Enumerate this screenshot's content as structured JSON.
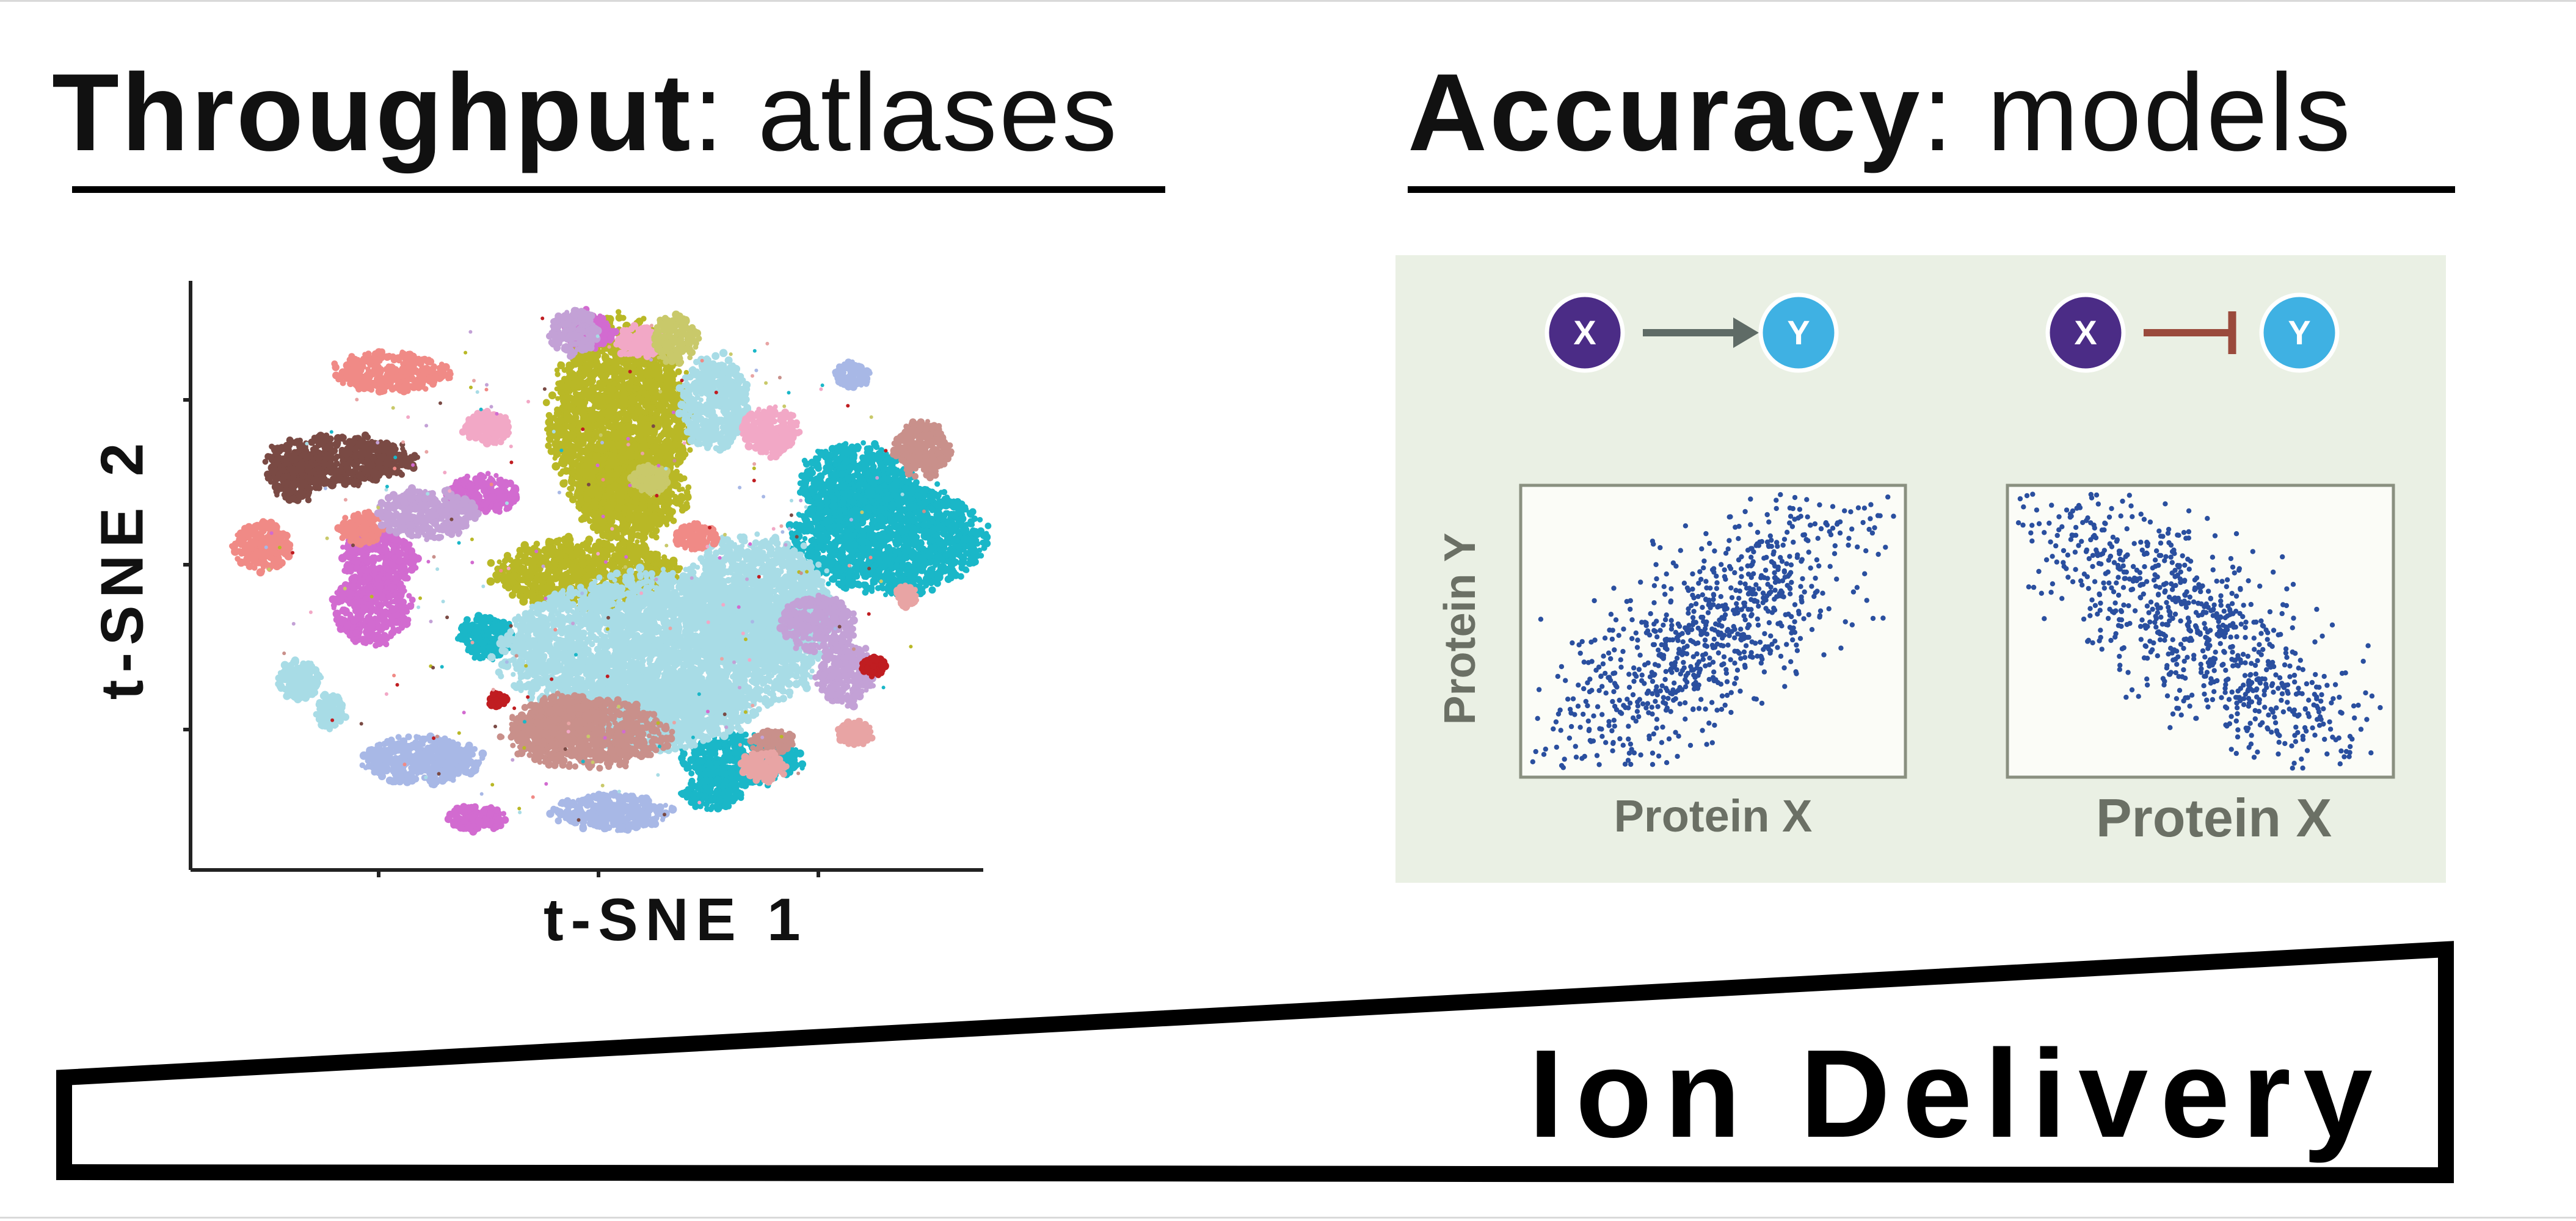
{
  "left_heading": {
    "bold": "Throughput",
    "rest": ": atlases"
  },
  "right_heading": {
    "bold": "Accuracy",
    "rest": ": models"
  },
  "tsne": {
    "xlabel": "t-SNE 1",
    "ylabel": "t-SNE 2"
  },
  "models": {
    "node_x": "X",
    "node_y": "Y",
    "left_relation": "activation",
    "right_relation": "inhibition",
    "ylabel": "Protein Y",
    "left_xlabel": "Protein X",
    "right_xlabel": "Protein X",
    "left_correlation": "positive",
    "right_correlation": "negative"
  },
  "banner": {
    "label": "Ion Delivery"
  },
  "colors": {
    "text": "#111111",
    "panel_bg": "#eaf0e4",
    "node_x": "#4b2c86",
    "node_y": "#3fb1e3",
    "activation_arrow": "#5f6b66",
    "inhibition_arrow": "#9a4a3c",
    "scatter_dots": "#2a4f9f",
    "plot_text": "#6b7065",
    "clusters": [
      "#b9b826",
      "#1ab7c8",
      "#a8dce6",
      "#c9908b",
      "#d26bd0",
      "#7a4a44",
      "#f08a86",
      "#c3a1d6",
      "#f2a8c6",
      "#a8b8e6",
      "#c9c96a",
      "#c01d21",
      "#e8a4a4"
    ]
  }
}
